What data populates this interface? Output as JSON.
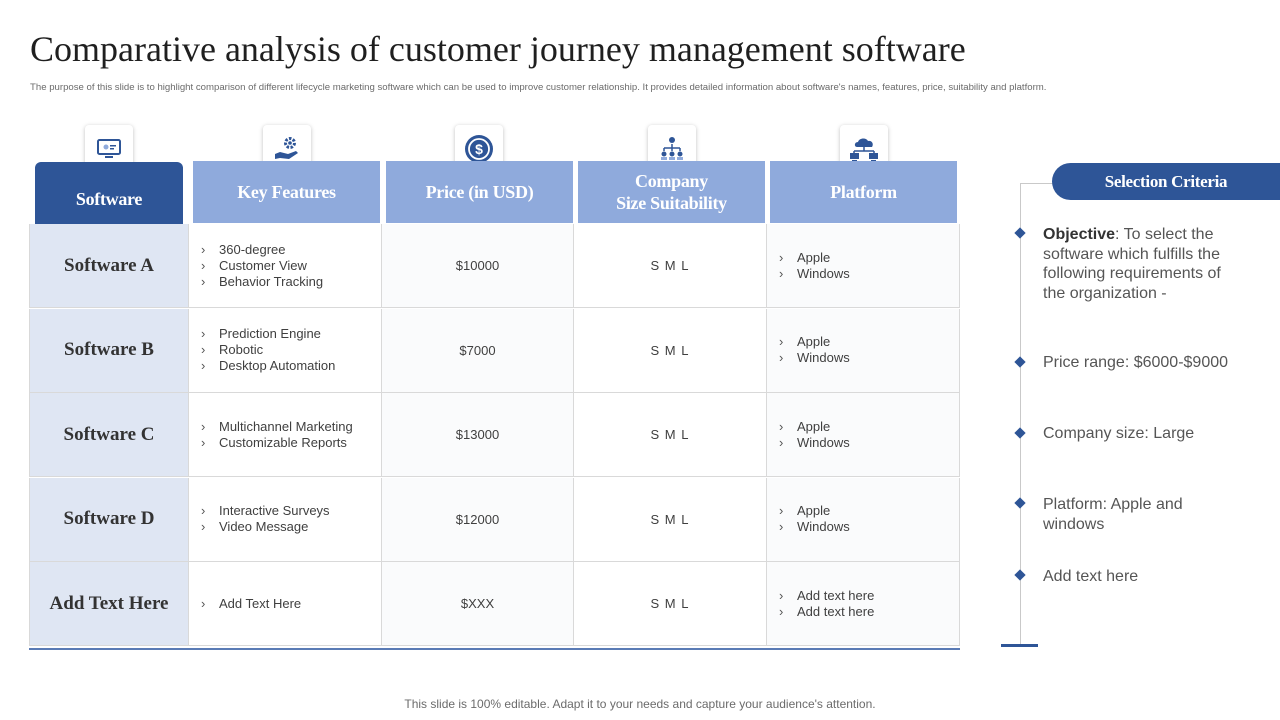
{
  "page": {
    "title": "Comparative analysis of customer journey management software",
    "subtitle": "The purpose of this slide is to highlight comparison of different lifecycle marketing software which can be used to improve customer relationship. It provides detailed information about software's names, features, price, suitability and platform.",
    "footer": "This slide is 100% editable. Adapt it to your needs and capture your audience's attention."
  },
  "table": {
    "headers": {
      "software": "Software",
      "features": "Key Features",
      "price": "Price (in USD)",
      "size_line1": "Company",
      "size_line2": "Size Suitability",
      "platform": "Platform"
    },
    "header_icons": [
      "computer-icon",
      "hand-gear-icon",
      "dollar-coin-icon",
      "org-hierarchy-icon",
      "cloud-network-icon"
    ],
    "rows": [
      {
        "name": "Software A",
        "features": [
          "360-degree",
          "Customer View",
          "Behavior Tracking"
        ],
        "price": "$10000",
        "size": "S M L",
        "platforms": [
          "Apple",
          "Windows"
        ]
      },
      {
        "name": "Software B",
        "features": [
          "Prediction Engine",
          "Robotic",
          "Desktop Automation"
        ],
        "price": "$7000",
        "size": "S M L",
        "platforms": [
          "Apple",
          "Windows"
        ]
      },
      {
        "name": "Software C",
        "features": [
          "Multichannel Marketing",
          "Customizable Reports"
        ],
        "price": "$13000",
        "size": "S M L",
        "platforms": [
          "Apple",
          "Windows"
        ]
      },
      {
        "name": "Software D",
        "features": [
          "Interactive  Surveys",
          "Video Message"
        ],
        "price": "$12000",
        "size": "S M L",
        "platforms": [
          "Apple",
          "Windows"
        ]
      },
      {
        "name": "Add Text Here",
        "features": [
          "Add Text Here"
        ],
        "price": "$XXX",
        "size": "S M L",
        "platforms": [
          "Add text here",
          "Add text here"
        ]
      }
    ]
  },
  "criteria": {
    "title": "Selection Criteria",
    "objective_label": "Objective",
    "objective_text": ": To select the software which fulfills the following requirements of the organization -",
    "items": [
      "Price range: $6000-$9000",
      "Company size: Large",
      "Platform: Apple and windows",
      "Add text here"
    ]
  },
  "colors": {
    "dark_blue": "#2e5597",
    "light_blue": "#8faadc",
    "row_label_bg": "#dfe6f3"
  }
}
